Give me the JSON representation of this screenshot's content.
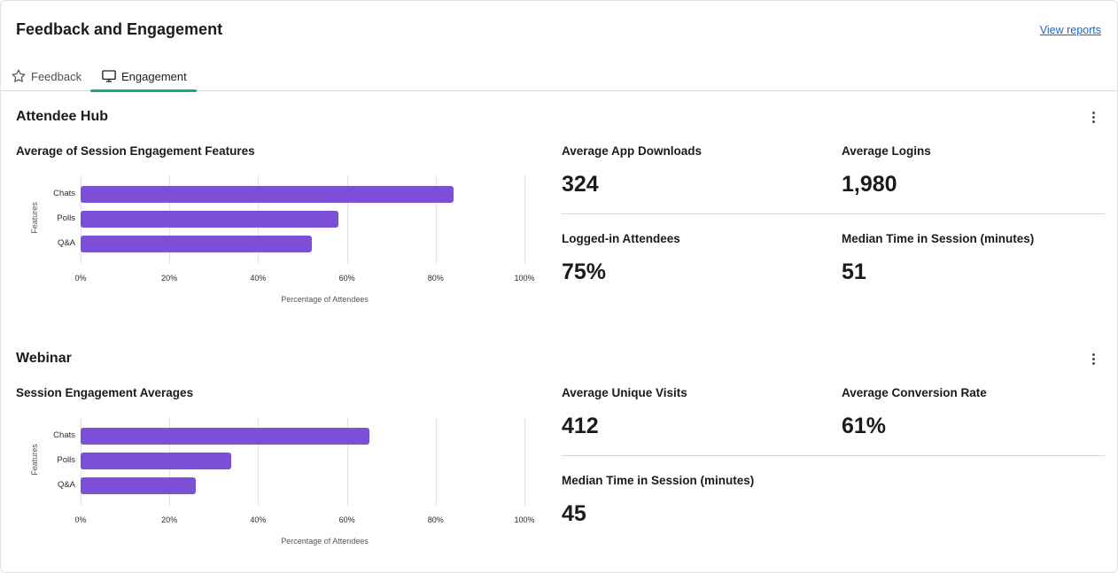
{
  "header": {
    "title": "Feedback and Engagement",
    "view_reports": "View reports"
  },
  "tabs": [
    {
      "label": "Feedback",
      "icon": "star-icon",
      "active": false
    },
    {
      "label": "Engagement",
      "icon": "monitor-icon",
      "active": true
    }
  ],
  "colors": {
    "accent": "#1aa877",
    "bar": "#7b4fd6",
    "link": "#1a66d2"
  },
  "attendee_hub": {
    "title": "Attendee Hub",
    "chart_title": "Average of Session Engagement Features",
    "metrics": [
      {
        "label": "Average App Downloads",
        "value": "324"
      },
      {
        "label": "Average Logins",
        "value": "1,980"
      },
      {
        "label": "Logged-in Attendees",
        "value": "75%"
      },
      {
        "label": "Median Time in Session (minutes)",
        "value": "51"
      }
    ]
  },
  "webinar": {
    "title": "Webinar",
    "chart_title": "Session Engagement  Averages",
    "metrics": [
      {
        "label": "Average Unique Visits",
        "value": "412"
      },
      {
        "label": "Average Conversion Rate",
        "value": "61%"
      },
      {
        "label": "Median Time in Session (minutes)",
        "value": "45"
      }
    ]
  },
  "chart_data": [
    {
      "type": "bar",
      "orientation": "horizontal",
      "categories": [
        "Chats",
        "Polls",
        "Q&A"
      ],
      "values": [
        84,
        58,
        52
      ],
      "xlabel": "Percentage of Attendees",
      "ylabel": "Features",
      "xlim": [
        0,
        100
      ],
      "xticks": [
        "0%",
        "20%",
        "40%",
        "60%",
        "80%",
        "100%"
      ],
      "grid": true
    },
    {
      "type": "bar",
      "orientation": "horizontal",
      "categories": [
        "Chats",
        "Polls",
        "Q&A"
      ],
      "values": [
        65,
        34,
        26
      ],
      "xlabel": "Percentage of Attendees",
      "ylabel": "Features",
      "xlim": [
        0,
        100
      ],
      "xticks": [
        "0%",
        "20%",
        "40%",
        "60%",
        "80%",
        "100%"
      ],
      "grid": true
    }
  ]
}
